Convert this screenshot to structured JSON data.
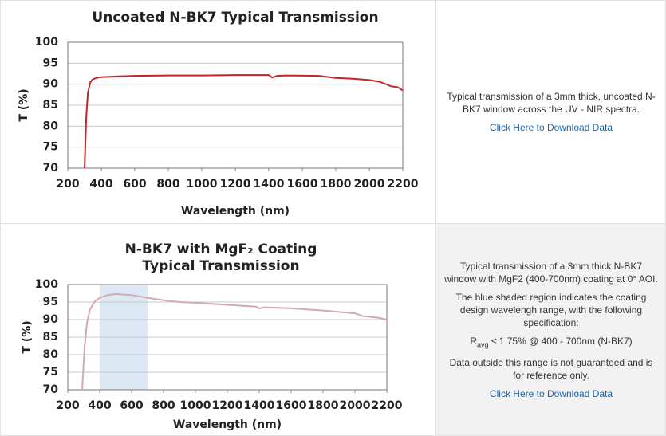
{
  "chart_data": [
    {
      "type": "line",
      "title": "Uncoated N-BK7 Typical Transmission",
      "x_label": "Wavelength (nm)",
      "y_label": "T (%)",
      "x": [
        300,
        310,
        320,
        335,
        350,
        370,
        400,
        500,
        600,
        800,
        1000,
        1200,
        1400,
        1420,
        1450,
        1500,
        1700,
        1800,
        1900,
        2000,
        2060,
        2100,
        2130,
        2170,
        2200
      ],
      "values": [
        70,
        82,
        88,
        90.5,
        91.2,
        91.5,
        91.7,
        91.9,
        92.0,
        92.1,
        92.1,
        92.2,
        92.2,
        91.6,
        92.0,
        92.1,
        92.0,
        91.5,
        91.3,
        91.0,
        90.6,
        90.0,
        89.5,
        89.3,
        88.5
      ],
      "color": "#c0272d",
      "xlim": [
        200,
        2200
      ],
      "ylim": [
        70,
        100
      ],
      "xticks": [
        200,
        400,
        600,
        800,
        1000,
        1200,
        1400,
        1600,
        1800,
        2000,
        2200
      ],
      "yticks": [
        70,
        75,
        80,
        85,
        90,
        95,
        100
      ],
      "grid": true
    },
    {
      "type": "line",
      "title": "N-BK7 with MgF₂ Coating",
      "subtitle": "Typical Transmission",
      "x_label": "Wavelength (nm)",
      "y_label": "T (%)",
      "x": [
        290,
        305,
        320,
        340,
        370,
        400,
        450,
        500,
        600,
        700,
        800,
        900,
        1000,
        1200,
        1380,
        1400,
        1430,
        1600,
        1800,
        2000,
        2050,
        2150,
        2200
      ],
      "values": [
        70,
        82,
        89,
        93,
        95.2,
        96.2,
        97,
        97.3,
        97.0,
        96.2,
        95.5,
        95.0,
        94.8,
        94.2,
        93.7,
        93.2,
        93.5,
        93.2,
        92.6,
        91.8,
        91.0,
        90.5,
        90.0
      ],
      "color": "#d4a9b3",
      "highlight_range": [
        400,
        700
      ],
      "highlight_color": "#dce9f5",
      "xlim": [
        200,
        2200
      ],
      "ylim": [
        70,
        100
      ],
      "xticks": [
        200,
        400,
        600,
        800,
        1000,
        1200,
        1400,
        1600,
        1800,
        2000,
        2200
      ],
      "yticks": [
        70,
        75,
        80,
        85,
        90,
        95,
        100
      ],
      "grid": true
    }
  ],
  "panels": [
    {
      "paragraphs": [
        "Typical transmission of a 3mm thick, uncoated N-BK7 window across the UV - NIR spectra."
      ],
      "link": "Click Here to Download Data"
    },
    {
      "paragraphs": [
        "Typical transmission of a 3mm thick N-BK7 window with MgF2 (400-700nm) coating at 0° AOI.",
        "The blue shaded region indicates the coating design wavelengh range, with the following specification:"
      ],
      "spec": {
        "symbol": "R",
        "subscript": "avg",
        "text": " ≤ 1.75% @ 400 - 700nm (N-BK7)"
      },
      "note": "Data outside this range is not guaranteed and is for reference only.",
      "link": "Click Here to Download Data"
    }
  ]
}
